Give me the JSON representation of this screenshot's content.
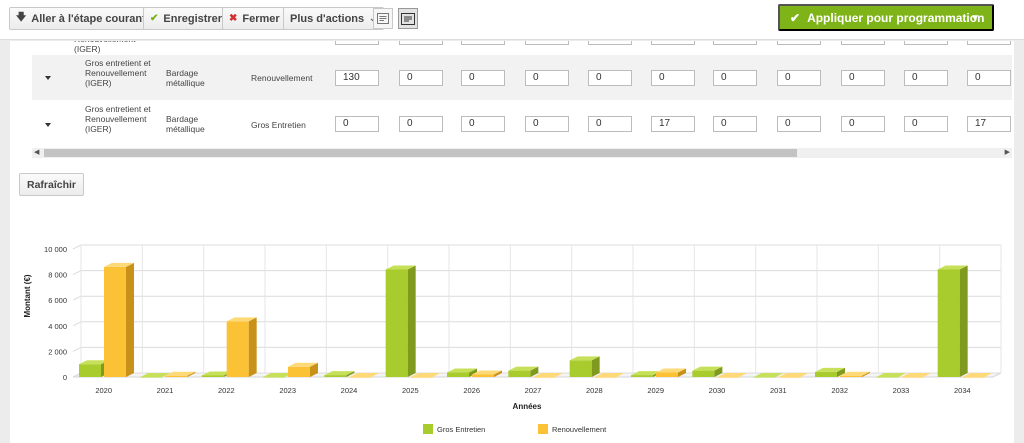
{
  "toolbar": {
    "goto_label": "Aller à l'étape courante",
    "save_label": "Enregistrer",
    "close_label": "Fermer",
    "more_label": "Plus d'actions",
    "apply_label": "Appliquer pour programmation"
  },
  "colors": {
    "accent": "#7fb418",
    "gros_entretien": "#a8cb2e",
    "renouvellement": "#fcc236"
  },
  "grid": {
    "partial_row": {
      "label": "Renouvellement (IGER)"
    },
    "rows": [
      {
        "category": "Gros entretient et Renouvellement (IGER)",
        "element": "Bardage métallique",
        "type": "Renouvellement",
        "values": [
          "130",
          "0",
          "0",
          "0",
          "0",
          "0",
          "0",
          "0",
          "0",
          "0",
          "0"
        ]
      },
      {
        "category": "Gros entretient et Renouvellement (IGER)",
        "element": "Bardage métallique",
        "type": "Gros Entretien",
        "values": [
          "0",
          "0",
          "0",
          "0",
          "0",
          "17",
          "0",
          "0",
          "0",
          "0",
          "17"
        ]
      }
    ]
  },
  "refresh_label": "Rafraîchir",
  "chart_data": {
    "type": "bar",
    "categories": [
      "2020",
      "2021",
      "2022",
      "2023",
      "2024",
      "2025",
      "2026",
      "2027",
      "2028",
      "2029",
      "2030",
      "2031",
      "2032",
      "2033",
      "2034"
    ],
    "series": [
      {
        "name": "Gros Entretien",
        "values": [
          1000,
          0,
          120,
          0,
          150,
          8400,
          350,
          500,
          1300,
          150,
          500,
          0,
          400,
          0,
          8400
        ]
      },
      {
        "name": "Renouvellement",
        "values": [
          8600,
          100,
          4350,
          800,
          0,
          0,
          200,
          0,
          0,
          350,
          0,
          0,
          100,
          0,
          0
        ]
      }
    ],
    "xlabel": "Années",
    "ylabel": "Montant (€)",
    "ylim": [
      0,
      10000
    ],
    "yticks": [
      "0",
      "2 000",
      "4 000",
      "6 000",
      "8 000",
      "10 000"
    ],
    "legend_position": "bottom",
    "grid": true,
    "style": "3d"
  }
}
